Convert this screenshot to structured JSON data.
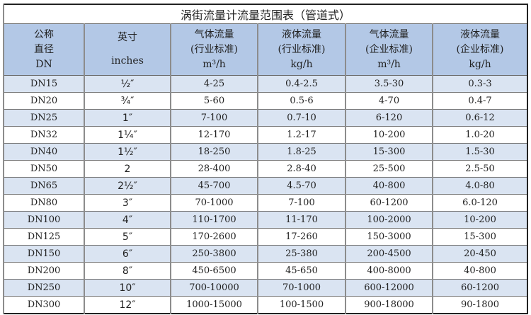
{
  "title": "涡街流量计流量范围表（管道式）",
  "headers": [
    {
      "line1": "公称",
      "line2": "直径",
      "line3": "DN"
    },
    {
      "line1": "英寸",
      "line2": "",
      "line3": "inches"
    },
    {
      "line1": "气体流量",
      "line2": "(行业标准)",
      "line3": "m³/h"
    },
    {
      "line1": "液体流量",
      "line2": "(行业标准)",
      "line3": "kg/h"
    },
    {
      "line1": "气体流量",
      "line2": "(企业标准)",
      "line3": "m³/h"
    },
    {
      "line1": "液体流量",
      "line2": "(企业标准)",
      "line3": "kg/h"
    }
  ],
  "rows": [
    [
      "DN15",
      "½″",
      "4-25",
      "0.4-2.5",
      "3.5-30",
      "0.3-3"
    ],
    [
      "DN20",
      "¾″",
      "5-60",
      "0.5-6",
      "4-70",
      "0.4-7"
    ],
    [
      "DN25",
      "1″",
      "7-100",
      "0.7-10",
      "6-120",
      "0.6-12"
    ],
    [
      "DN32",
      "1¼″",
      "12-170",
      "1.2-17",
      "10-200",
      "1.0-20"
    ],
    [
      "DN40",
      "1½″",
      "18-250",
      "1.8-25",
      "15-300",
      "1.5-30"
    ],
    [
      "DN50",
      "2",
      "28-400",
      "2.8-40",
      "25-500",
      "2.5-50"
    ],
    [
      "DN65",
      "2½″",
      "45-700",
      "4.5-70",
      "40-800",
      "4.0-80"
    ],
    [
      "DN80",
      "3″",
      "70-1000",
      "7-100",
      "60-1200",
      "6.0-120"
    ],
    [
      "DN100",
      "4″",
      "110-1700",
      "11-170",
      "100-2000",
      "10-200"
    ],
    [
      "DN125",
      "5″",
      "170-2600",
      "17-260",
      "150-3000",
      "15-300"
    ],
    [
      "DN150",
      "6″",
      "250-3800",
      "25-380",
      "200-4500",
      "20-450"
    ],
    [
      "DN200",
      "8″",
      "450-6500",
      "45-650",
      "400-8000",
      "40-800"
    ],
    [
      "DN250",
      "10″",
      "700-10000",
      "70-1000",
      "600-12000",
      "60-1200"
    ],
    [
      "DN300",
      "12″",
      "1000-15000",
      "100-1500",
      "900-18000",
      "90-1800"
    ]
  ],
  "colors": {
    "header_bg": "#b3c8e6",
    "row_alt_bg": "#dae4f2"
  }
}
